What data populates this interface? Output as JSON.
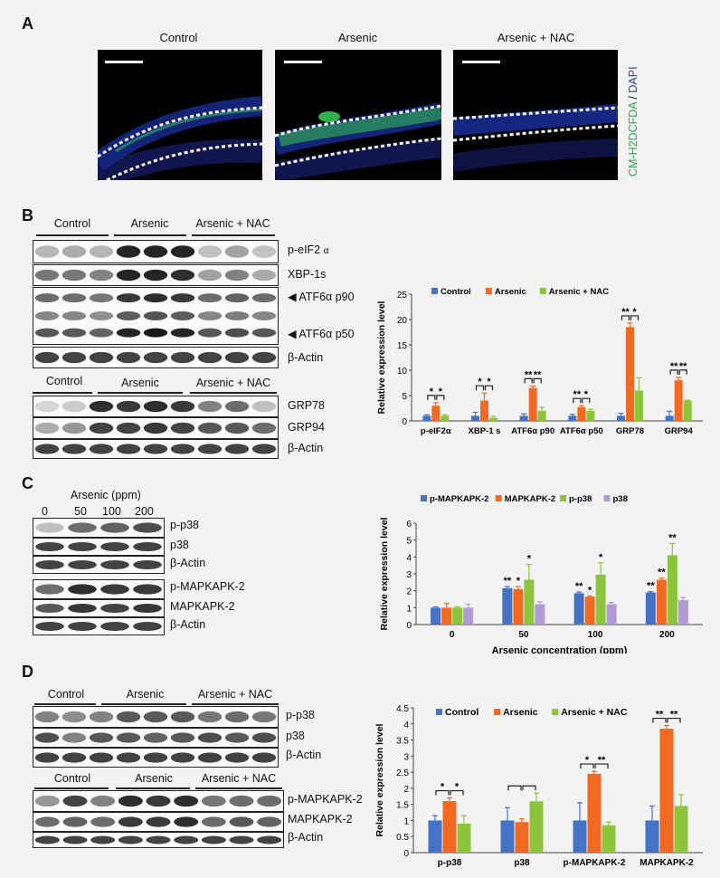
{
  "panel_letters": {
    "a": "A",
    "b": "B",
    "c": "C",
    "d": "D"
  },
  "panel_a": {
    "titles": [
      "Control",
      "Arsenic",
      "Arsenic + NAC"
    ],
    "stain_label_green": "CM-H2DCFDA",
    "stain_label_sep": " / ",
    "stain_label_blue": "DAPI"
  },
  "panel_b": {
    "groups_top": [
      "Control",
      "Arsenic",
      "Arsenic + NAC"
    ],
    "groups_bottom": [
      "Control",
      "Arsenic",
      "Arsenic + NAC"
    ],
    "blot_labels": [
      "p-eIF2",
      "α",
      "XBP-1s",
      "◀ ATF6α p90",
      "◀ ATF6α p50",
      "β-Actin",
      "GRP78",
      "GRP94",
      "β-Actin"
    ]
  },
  "panel_c": {
    "header": "Arsenic (ppm)",
    "doses": [
      "0",
      "50",
      "100",
      "200"
    ],
    "blot_labels": [
      "p-p38",
      "p38",
      "β-Actin",
      "p-MAPKAPK-2",
      "MAPKAPK-2",
      "β-Actin"
    ]
  },
  "panel_d": {
    "groups_top": [
      "Control",
      "Arsenic",
      "Arsenic + NAC"
    ],
    "groups_bottom": [
      "Control",
      "Arsenic",
      "Arsenic + NAC"
    ],
    "blot_labels": [
      "p-p38",
      "p38",
      "β-Actin",
      "p-MAPKAPK-2",
      "MAPKAPK-2",
      "β-Actin"
    ]
  },
  "colors": {
    "blue": "#4472c4",
    "orange": "#f26a21",
    "green": "#8cc43c",
    "purple": "#b09ad6"
  },
  "chart_data": [
    {
      "id": "chartB",
      "type": "bar",
      "ylabel": "Relative expression level",
      "ylim": [
        0,
        25
      ],
      "yticks": [
        "0",
        "5",
        "10",
        "15",
        "20",
        "25"
      ],
      "categories": [
        "p-eIF2α",
        "XBP-1 s",
        "ATF6α p90",
        "ATF6α p50",
        "GRP78",
        "GRP94"
      ],
      "series": [
        {
          "name": "Control",
          "values": [
            1,
            1,
            1,
            1,
            1,
            1
          ],
          "errors": [
            0.2,
            0.7,
            0.4,
            0.3,
            0.5,
            0.9
          ]
        },
        {
          "name": "Arsenic",
          "values": [
            3,
            4,
            6.5,
            2.7,
            18.5,
            8
          ],
          "errors": [
            0.6,
            1.5,
            0.4,
            0.3,
            0.8,
            0.6
          ]
        },
        {
          "name": "Arsenic + NAC",
          "values": [
            1,
            0.6,
            2,
            2,
            6,
            4
          ],
          "errors": [
            0.2,
            0.3,
            0.7,
            0.3,
            2.5,
            0.1
          ]
        }
      ],
      "sig": [
        {
          "cat": 0,
          "pairs": [
            [
              "*",
              0,
              1
            ],
            [
              "*",
              1,
              2
            ]
          ]
        },
        {
          "cat": 1,
          "pairs": [
            [
              "*",
              0,
              1
            ],
            [
              "*",
              1,
              2
            ]
          ]
        },
        {
          "cat": 2,
          "pairs": [
            [
              "**",
              0,
              1
            ],
            [
              "**",
              1,
              2
            ]
          ]
        },
        {
          "cat": 3,
          "pairs": [
            [
              "**",
              0,
              1
            ],
            [
              "*",
              1,
              2
            ]
          ]
        },
        {
          "cat": 4,
          "pairs": [
            [
              "**",
              0,
              1
            ],
            [
              "*",
              1,
              2
            ]
          ]
        },
        {
          "cat": 5,
          "pairs": [
            [
              "**",
              0,
              1
            ],
            [
              "**",
              1,
              2
            ]
          ]
        }
      ]
    },
    {
      "id": "chartC",
      "type": "bar",
      "xlabel": "Arsenic concentration (ppm)",
      "ylabel": "Relative expression level",
      "ylim": [
        0,
        6
      ],
      "yticks": [
        "0",
        "1",
        "2",
        "3",
        "4",
        "5",
        "6"
      ],
      "categories": [
        "0",
        "50",
        "100",
        "200"
      ],
      "series": [
        {
          "name": "p-MAPKAPK-2",
          "values": [
            1,
            2.15,
            1.85,
            1.9
          ],
          "errors": [
            0.05,
            0.1,
            0.08,
            0.05
          ]
        },
        {
          "name": "MAPKAPK-2",
          "values": [
            1,
            2.1,
            1.65,
            2.65
          ],
          "errors": [
            0.25,
            0.15,
            0.05,
            0.1
          ]
        },
        {
          "name": "p-p38",
          "values": [
            1,
            2.65,
            2.95,
            4.1
          ],
          "errors": [
            0.05,
            0.9,
            0.7,
            0.7
          ]
        },
        {
          "name": "p38",
          "values": [
            1,
            1.2,
            1.2,
            1.45
          ],
          "errors": [
            0.2,
            0.15,
            0.1,
            0.15
          ]
        }
      ],
      "stars": [
        {
          "cat": 1,
          "s": 0,
          "t": "**"
        },
        {
          "cat": 1,
          "s": 1,
          "t": "*"
        },
        {
          "cat": 1,
          "s": 2,
          "t": "*"
        },
        {
          "cat": 2,
          "s": 0,
          "t": "**"
        },
        {
          "cat": 2,
          "s": 1,
          "t": "*"
        },
        {
          "cat": 2,
          "s": 2,
          "t": "*"
        },
        {
          "cat": 3,
          "s": 0,
          "t": "**"
        },
        {
          "cat": 3,
          "s": 1,
          "t": "**"
        },
        {
          "cat": 3,
          "s": 2,
          "t": "**"
        }
      ]
    },
    {
      "id": "chartD",
      "type": "bar",
      "ylabel": "Relative expression level",
      "ylim": [
        0,
        4.5
      ],
      "yticks": [
        "0",
        "0.5",
        "1",
        "1.5",
        "2",
        "2.5",
        "3",
        "3.5",
        "4",
        "4.5"
      ],
      "categories": [
        "p-p38",
        "p38",
        "p-MAPKAPK-2",
        "MAPKAPK-2"
      ],
      "series": [
        {
          "name": "Control",
          "values": [
            1,
            1,
            1,
            1
          ],
          "errors": [
            0.15,
            0.4,
            0.55,
            0.45
          ]
        },
        {
          "name": "Arsenic",
          "values": [
            1.6,
            0.95,
            2.45,
            3.85
          ],
          "errors": [
            0.1,
            0.1,
            0.08,
            0.1
          ]
        },
        {
          "name": "Arsenic + NAC",
          "values": [
            0.9,
            1.6,
            0.85,
            1.45
          ],
          "errors": [
            0.25,
            0.25,
            0.1,
            0.35
          ]
        }
      ],
      "sig": [
        {
          "cat": 0,
          "pairs": [
            [
              "*",
              0,
              1
            ],
            [
              "*",
              1,
              2
            ]
          ]
        },
        {
          "cat": 1,
          "pairs": [
            [
              "",
              0,
              1
            ],
            [
              "",
              1,
              2
            ]
          ]
        },
        {
          "cat": 2,
          "pairs": [
            [
              "*",
              0,
              1
            ],
            [
              "**",
              1,
              2
            ]
          ]
        },
        {
          "cat": 3,
          "pairs": [
            [
              "**",
              0,
              1
            ],
            [
              "**",
              1,
              2
            ]
          ]
        }
      ]
    }
  ]
}
